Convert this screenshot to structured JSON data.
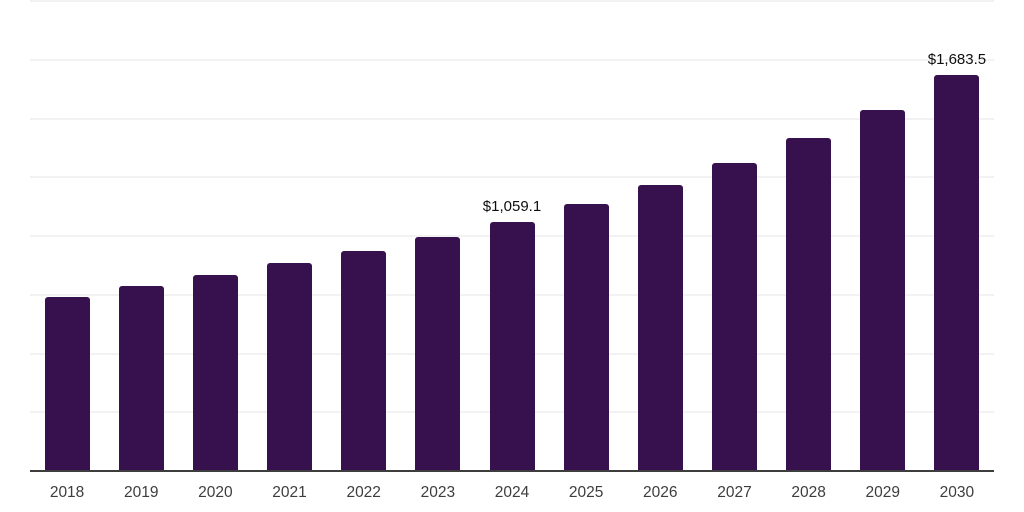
{
  "chart_data": {
    "type": "bar",
    "title": "",
    "xlabel": "",
    "ylabel": "",
    "categories": [
      "2018",
      "2019",
      "2020",
      "2021",
      "2022",
      "2023",
      "2024",
      "2025",
      "2026",
      "2027",
      "2028",
      "2029",
      "2030"
    ],
    "values": [
      741,
      787,
      834,
      883,
      937,
      994,
      1059.1,
      1137,
      1218,
      1310,
      1415,
      1538,
      1683.5
    ],
    "data_labels": [
      null,
      null,
      null,
      null,
      null,
      null,
      "$1,059.1",
      null,
      null,
      null,
      null,
      null,
      "$1,683.5"
    ],
    "ylim": [
      0,
      2000
    ],
    "grid_step": 250,
    "grid": "horizontal-light",
    "legend_position": "none",
    "colors": {
      "bar": "#36114E",
      "gridline": "#f2f2f2",
      "axis": "#3d3d3d",
      "tick_label": "#3d3d3d",
      "value_label": "#0f0f0f",
      "background": "#ffffff"
    }
  }
}
